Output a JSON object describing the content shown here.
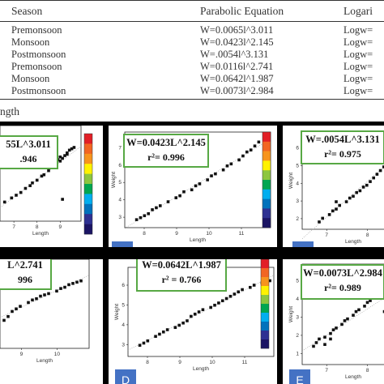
{
  "table": {
    "headers": [
      "Season",
      "Parabolic Equation",
      "Logari"
    ],
    "rows": [
      {
        "season": "Premonsoon",
        "equation": "W=0.0065l^3.011",
        "log": "Logw="
      },
      {
        "season": "Monsoon",
        "equation": "W=0.0423l^2.145",
        "log": "Logw="
      },
      {
        "season": "Postmonsoon",
        "equation": "W=.0054l^3.131",
        "log": "Logw="
      },
      {
        "season": "Premonsoon",
        "equation": "W=0.0116l^2.741",
        "log": "Logw="
      },
      {
        "season": "Monsoon",
        "equation": "W=0.0642l^1.987",
        "log": "Logw="
      },
      {
        "season": "Postmonsoon",
        "equation": "W=0.0073l^2.984",
        "log": "Logw="
      }
    ]
  },
  "caption": "ngth",
  "colorbar_colors": [
    "#e21f26",
    "#f26522",
    "#f7941d",
    "#fff200",
    "#8dc63f",
    "#00a651",
    "#00aeef",
    "#0072bc",
    "#2e3192",
    "#1b1464"
  ],
  "panels": [
    {
      "id": "A",
      "equation": "55L^3.011",
      "r2": ".946",
      "badge": "",
      "xlabel": "Length",
      "ylabel": "",
      "xticks": [
        "7",
        "8",
        "9"
      ],
      "yticks": []
    },
    {
      "id": "B",
      "equation": "W=0.0423L^2.145",
      "r2": "r²= 0.996",
      "badge": "B",
      "xlabel": "Length",
      "ylabel": "Weight",
      "xticks": [
        "8",
        "9",
        "10",
        "11"
      ],
      "yticks": [
        "3",
        "4",
        "5",
        "6",
        "7"
      ]
    },
    {
      "id": "C",
      "equation": "W=.0054L^3.131",
      "r2": "r²= 0.975",
      "badge": "C",
      "xlabel": "Length",
      "ylabel": "Weight",
      "xticks": [
        "7",
        "8"
      ],
      "yticks": [
        "2",
        "3",
        "4",
        "5",
        "6"
      ]
    },
    {
      "id": "A2",
      "equation": "L^2.741",
      "r2": "996",
      "badge": "",
      "xlabel": "Length",
      "ylabel": "",
      "xticks": [
        "9",
        "10"
      ],
      "yticks": []
    },
    {
      "id": "D",
      "equation": "W=0.0642L^1.987",
      "r2": "r² = 0.766",
      "badge": "D",
      "xlabel": "Length",
      "ylabel": "Weight",
      "xticks": [
        "8",
        "9",
        "10",
        "11"
      ],
      "yticks": [
        "3",
        "4",
        "5",
        "6"
      ]
    },
    {
      "id": "E",
      "equation": "W=0.0073L^2.984",
      "r2": "r²= 0.989",
      "badge": "E",
      "xlabel": "Length",
      "ylabel": "Weight",
      "xticks": [
        "7",
        "8"
      ],
      "yticks": [
        "1",
        "2",
        "3",
        "4",
        "5"
      ]
    }
  ]
}
